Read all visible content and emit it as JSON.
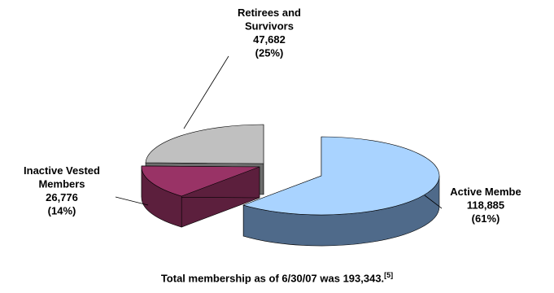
{
  "chart_data": {
    "type": "pie",
    "style": "3d-exploded",
    "slices": [
      {
        "label_lines": [
          "Active Membe",
          "118,885",
          "(61%)"
        ],
        "value": 118885,
        "percent": 61,
        "color": "#a9d3ff",
        "side": "#4f6a8a"
      },
      {
        "label_lines": [
          "Inactive Vested",
          "Members",
          "26,776",
          "(14%)"
        ],
        "value": 26776,
        "percent": 14,
        "color": "#993366",
        "side": "#5c1f3d"
      },
      {
        "label_lines": [
          "Retirees and",
          "Survivors",
          "47,682",
          "(25%)"
        ],
        "value": 47682,
        "percent": 25,
        "color": "#c0c0c0",
        "side": "#6e6e6e"
      }
    ]
  },
  "caption": {
    "text": "Total membership as of 6/30/07 was 193,343.",
    "footnote": "[5]"
  }
}
